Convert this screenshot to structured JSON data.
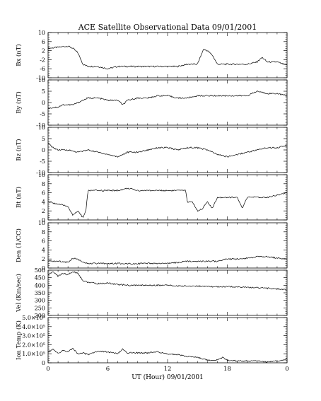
{
  "title": "ACE Satellite Observational Data  09/01/2001",
  "xlabel": "UT (Hour)  09/01/2001",
  "x_tick_labels": [
    "0",
    "6",
    "12",
    "18",
    "0"
  ],
  "colors": {
    "line": "#000000",
    "background": "#ffffff",
    "axis": "#000000"
  },
  "chart_data": [
    {
      "type": "line",
      "ylabel": "Bx (nT)",
      "xlim": [
        0,
        24
      ],
      "ylim": [
        -10,
        10
      ],
      "yticks": [
        -10,
        -6,
        -2,
        2,
        6,
        10
      ],
      "ytick_labels": [
        "-10",
        "-6",
        "-2",
        "2",
        "6",
        "10"
      ],
      "series": [
        {
          "x": [
            0,
            1,
            2,
            2.5,
            3,
            3.5,
            4,
            5,
            6,
            7,
            8,
            9,
            10,
            11,
            12,
            13,
            14,
            15,
            15.6,
            16,
            16.5,
            17,
            18,
            19,
            20,
            21,
            21.5,
            22,
            23,
            24
          ],
          "y": [
            3,
            3.5,
            4,
            3,
            1,
            -4,
            -5,
            -5,
            -6,
            -5,
            -5,
            -5,
            -5,
            -5,
            -5,
            -5,
            -4,
            -4,
            2.5,
            2,
            0,
            -4,
            -4,
            -4,
            -4,
            -3,
            -1,
            -3,
            -3,
            -4.5
          ]
        }
      ]
    },
    {
      "type": "line",
      "ylabel": "By (nT)",
      "xlim": [
        0,
        24
      ],
      "ylim": [
        -10,
        10
      ],
      "yticks": [
        -10,
        -5,
        0,
        5,
        10
      ],
      "ytick_labels": [
        "-10",
        "-5",
        "0",
        "5",
        "10"
      ],
      "series": [
        {
          "x": [
            0,
            1,
            1.5,
            2,
            2.5,
            3,
            4,
            5,
            6,
            7,
            7.5,
            8,
            9,
            10,
            11,
            12,
            13,
            14,
            15,
            16,
            17,
            18,
            19,
            20,
            21,
            22,
            23,
            24
          ],
          "y": [
            -2.5,
            -2,
            -1,
            -1,
            -1,
            0,
            2,
            2,
            1,
            1,
            -1,
            1,
            2,
            2,
            3,
            3,
            2,
            2,
            3,
            3,
            3,
            3,
            3,
            3,
            5,
            4,
            4,
            3
          ]
        }
      ]
    },
    {
      "type": "line",
      "ylabel": "Bz (nT)",
      "xlim": [
        0,
        24
      ],
      "ylim": [
        -10,
        10
      ],
      "yticks": [
        -10,
        -5,
        0,
        5,
        10
      ],
      "ytick_labels": [
        "-10",
        "-5",
        "0",
        "5",
        "10"
      ],
      "series": [
        {
          "x": [
            0,
            0.5,
            1,
            2,
            3,
            4,
            5,
            6,
            7,
            8,
            9,
            10,
            11,
            12,
            13,
            14,
            15,
            16,
            17,
            18,
            19,
            20,
            21,
            22,
            23,
            24
          ],
          "y": [
            3,
            1,
            0,
            0,
            -1,
            0,
            -1,
            -2,
            -3,
            -1,
            -1,
            0,
            1,
            1,
            0,
            1,
            1,
            0,
            -2,
            -3,
            -2,
            -1,
            0,
            1,
            1,
            2
          ]
        }
      ]
    },
    {
      "type": "line",
      "ylabel": "Bt (nT)",
      "xlim": [
        0,
        24
      ],
      "ylim": [
        0,
        10
      ],
      "yticks": [
        0,
        2,
        4,
        6,
        8,
        10
      ],
      "ytick_labels": [
        "0",
        "2",
        "4",
        "6",
        "8",
        "10"
      ],
      "series": [
        {
          "x": [
            0,
            1,
            2,
            2.5,
            3,
            3.5,
            3.8,
            4,
            5,
            6,
            7,
            8,
            9,
            10,
            11,
            12,
            13,
            13.8,
            14,
            14.5,
            15,
            15.5,
            16,
            16.5,
            17,
            18,
            19,
            19.5,
            20,
            21,
            22,
            23,
            24
          ],
          "y": [
            4,
            3.5,
            3,
            1,
            2,
            0.5,
            2,
            6.5,
            6.5,
            6.5,
            6.5,
            7,
            6.5,
            6.5,
            6.5,
            6.5,
            6.5,
            6.5,
            4,
            4,
            2,
            2.5,
            4,
            2.5,
            5,
            5,
            5,
            2.5,
            5,
            5,
            5,
            5.5,
            6
          ]
        }
      ]
    },
    {
      "type": "line",
      "ylabel": "Den (1/CC)",
      "xlim": [
        0,
        24
      ],
      "ylim": [
        0,
        10
      ],
      "yticks": [
        0,
        2,
        4,
        6,
        8,
        10
      ],
      "ytick_labels": [
        "0",
        "2",
        "4",
        "6",
        "8",
        "10"
      ],
      "series": [
        {
          "x": [
            0,
            1,
            2,
            2.5,
            3,
            3.5,
            4,
            5,
            6,
            7,
            8,
            9,
            10,
            11,
            12,
            13,
            14,
            15,
            16,
            17,
            18,
            19,
            20,
            21,
            22,
            23,
            24
          ],
          "y": [
            1.5,
            1.5,
            1.3,
            2.2,
            2,
            1.2,
            1,
            1,
            1,
            1,
            1,
            1,
            1,
            1,
            1,
            1.2,
            1.5,
            1.5,
            1.5,
            1.5,
            2,
            2,
            2.2,
            2.5,
            2.5,
            2.2,
            2
          ]
        }
      ]
    },
    {
      "type": "line",
      "ylabel": "Vel (Km/sec)",
      "xlim": [
        0,
        24
      ],
      "ylim": [
        200,
        500
      ],
      "yticks": [
        200,
        250,
        300,
        350,
        400,
        450,
        500
      ],
      "ytick_labels": [
        "200",
        "250",
        "300",
        "350",
        "400",
        "450",
        "500"
      ],
      "series": [
        {
          "x": [
            0,
            0.5,
            1,
            1.5,
            2,
            2.5,
            3,
            3.5,
            4,
            5,
            6,
            7,
            8,
            9,
            10,
            11,
            12,
            13,
            14,
            15,
            16,
            17,
            18,
            19,
            20,
            21,
            22,
            23,
            24
          ],
          "y": [
            470,
            490,
            460,
            480,
            470,
            490,
            480,
            430,
            420,
            410,
            415,
            405,
            400,
            400,
            400,
            400,
            400,
            395,
            395,
            395,
            390,
            390,
            390,
            390,
            385,
            385,
            380,
            375,
            370
          ]
        }
      ]
    },
    {
      "type": "line",
      "ylabel": "Ion Temp (K)",
      "xlim": [
        0,
        24
      ],
      "ylim": [
        0,
        500000
      ],
      "yticks": [
        0,
        100000,
        200000,
        300000,
        400000,
        500000
      ],
      "ytick_labels": [
        "0",
        "1.0×10⁵",
        "2.0×10⁵",
        "3.0×10⁵",
        "4.0×10⁵",
        "5.0×10⁵"
      ],
      "series": [
        {
          "x": [
            0,
            0.5,
            1,
            1.5,
            2,
            2.5,
            3,
            3.5,
            4,
            5,
            6,
            7,
            7.5,
            8,
            9,
            10,
            11,
            12,
            13,
            14,
            15,
            16,
            17,
            17.5,
            18,
            19,
            20,
            21,
            22,
            23,
            24
          ],
          "y": [
            120000,
            150000,
            100000,
            140000,
            120000,
            160000,
            100000,
            110000,
            90000,
            130000,
            120000,
            100000,
            150000,
            110000,
            110000,
            110000,
            120000,
            100000,
            90000,
            70000,
            60000,
            30000,
            30000,
            60000,
            30000,
            20000,
            20000,
            20000,
            10000,
            20000,
            40000
          ]
        }
      ]
    }
  ]
}
